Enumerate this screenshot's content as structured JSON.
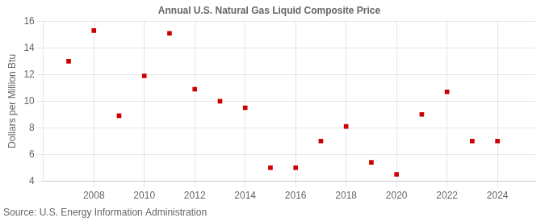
{
  "chart_data": {
    "type": "scatter",
    "title": "Annual U.S. Natural Gas Liquid Composite Price",
    "ylabel": "Dollars per Million Btu",
    "source": "Source: U.S. Energy Information Administration",
    "x": [
      2007,
      2008,
      2009,
      2010,
      2011,
      2012,
      2013,
      2014,
      2015,
      2016,
      2017,
      2018,
      2019,
      2020,
      2021,
      2022,
      2023,
      2024
    ],
    "values": [
      13.0,
      15.3,
      8.9,
      11.9,
      15.1,
      10.9,
      10.0,
      9.5,
      5.0,
      5.0,
      7.0,
      8.1,
      5.4,
      4.5,
      9.0,
      10.7,
      7.0,
      7.0
    ],
    "color": "#cc0000",
    "marker": "square",
    "xlim": [
      2006.0,
      2025.5
    ],
    "xticks": [
      2008,
      2010,
      2012,
      2014,
      2016,
      2018,
      2020,
      2022,
      2024
    ],
    "ylim": [
      4,
      16
    ],
    "yticks": [
      4,
      6,
      8,
      10,
      12,
      14,
      16
    ],
    "grid": true
  }
}
